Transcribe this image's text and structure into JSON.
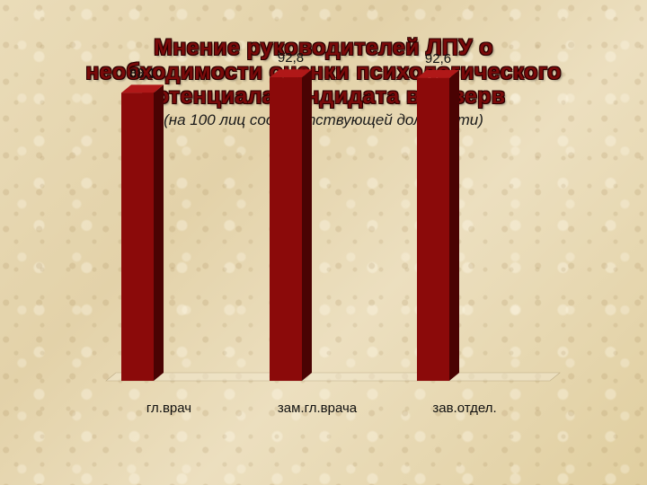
{
  "title_lines": [
    "Мнение руководителей ЛПУ о",
    "необходимости оценки психологического",
    "потенциала кандидата в резерв"
  ],
  "subtitle": "(на 100 лиц соответствующей должности)",
  "colors": {
    "bar_front": "#8b0a0a",
    "bar_side": "#4a0303",
    "bar_top": "#b01818",
    "title": "#7a0a0a"
  },
  "chart_data": {
    "type": "bar",
    "categories": [
      "гл.врач",
      "зам.гл.врача",
      "зав.отдел."
    ],
    "values": [
      88.1,
      92.8,
      92.6
    ],
    "value_labels": [
      "88,1",
      "92,8",
      "92,6"
    ],
    "title": "Мнение руководителей ЛПУ о необходимости оценки психологического потенциала кандидата в резерв",
    "subtitle": "(на 100 лиц соответствующей должности)",
    "xlabel": "",
    "ylabel": "",
    "ylim": [
      0,
      100
    ],
    "grid": false,
    "legend": "none",
    "style": "3d-column"
  }
}
